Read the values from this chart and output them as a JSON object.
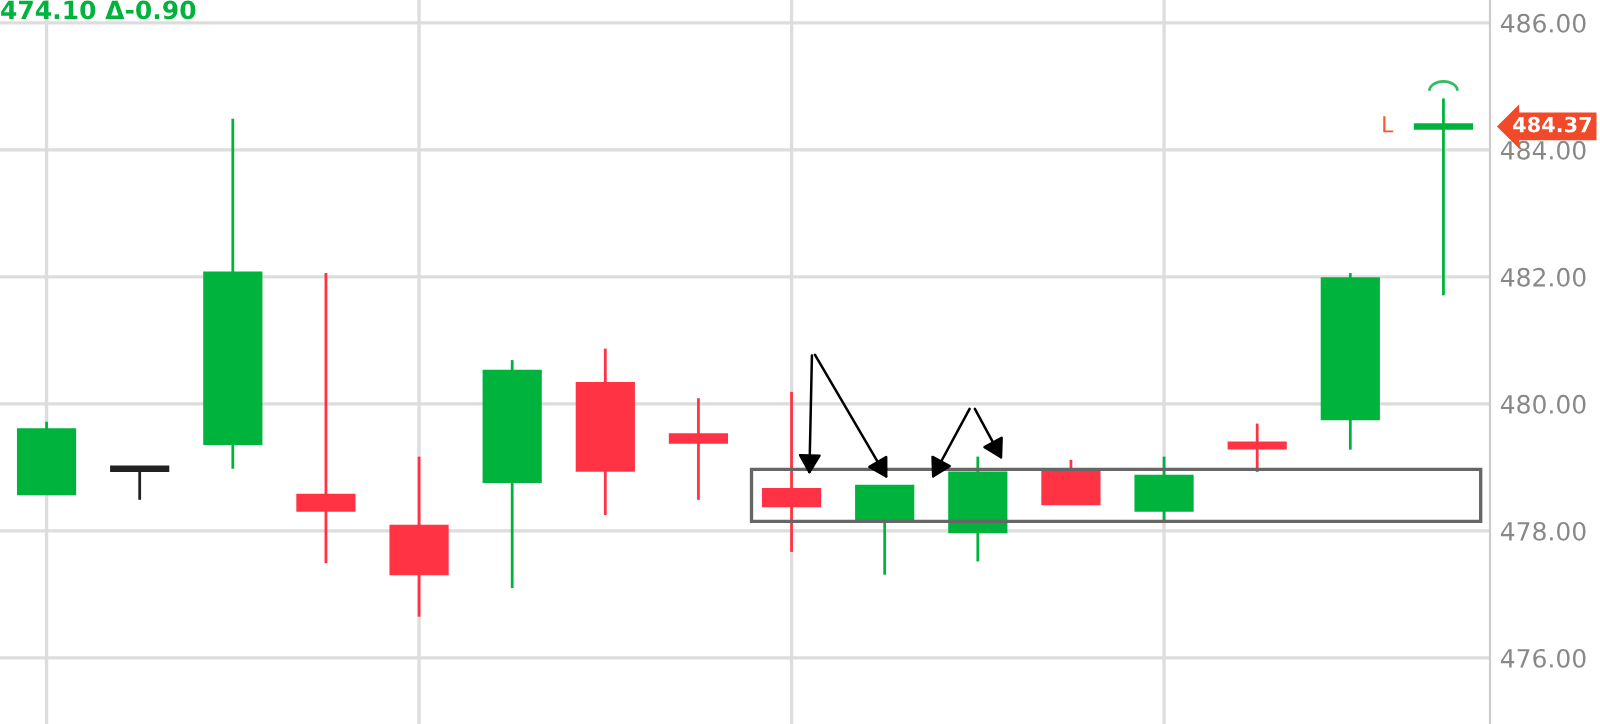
{
  "chart_data": {
    "type": "candlestick",
    "categories": [
      null,
      null,
      null,
      null,
      null,
      null,
      null,
      null,
      null,
      null,
      null,
      null,
      null,
      null,
      null,
      null
    ],
    "ohlc": [
      [
        478.59,
        479.72,
        478.59,
        479.59
      ],
      [
        478.98,
        478.98,
        478.49,
        478.98
      ],
      [
        479.38,
        484.49,
        478.98,
        482.06
      ],
      [
        478.56,
        482.06,
        477.49,
        478.33
      ],
      [
        478.07,
        479.17,
        476.65,
        477.33
      ],
      [
        478.78,
        480.69,
        477.1,
        480.51
      ],
      [
        480.32,
        480.87,
        478.25,
        478.96
      ],
      [
        479.51,
        480.09,
        478.49,
        479.4
      ],
      [
        478.65,
        480.19,
        477.67,
        478.4
      ],
      [
        478.15,
        478.7,
        477.31,
        478.7
      ],
      [
        477.99,
        479.17,
        477.52,
        478.91
      ],
      [
        478.96,
        479.12,
        478.43,
        478.43
      ],
      [
        478.33,
        479.17,
        478.17,
        478.86
      ],
      [
        479.38,
        479.69,
        478.93,
        479.31
      ],
      [
        479.77,
        482.06,
        479.28,
        481.97
      ],
      [
        484.37,
        484.81,
        481.71,
        484.37
      ]
    ],
    "colors": [
      "#00b33c",
      "#222222",
      "#00b33c",
      "#ff3344",
      "#ff3344",
      "#00b33c",
      "#ff3344",
      "#ff3344",
      "#ff3344",
      "#00b33c",
      "#00b33c",
      "#ff3344",
      "#00b33c",
      "#ff3344",
      "#00b33c",
      "#00b33c"
    ],
    "ylim": [
      474.96,
      486.36
    ],
    "yticks": [
      {
        "value": 476,
        "label": "476.00"
      },
      {
        "value": 478,
        "label": "478.00"
      },
      {
        "value": 480,
        "label": "480.00"
      },
      {
        "value": 482,
        "label": "482.00"
      },
      {
        "value": 484,
        "label": "484.00"
      },
      {
        "value": 486,
        "label": "486.00"
      }
    ],
    "tick_labels": "y",
    "grid": true,
    "annotations": [
      "474.10 Δ-0.90",
      "484.37",
      "L"
    ]
  }
}
